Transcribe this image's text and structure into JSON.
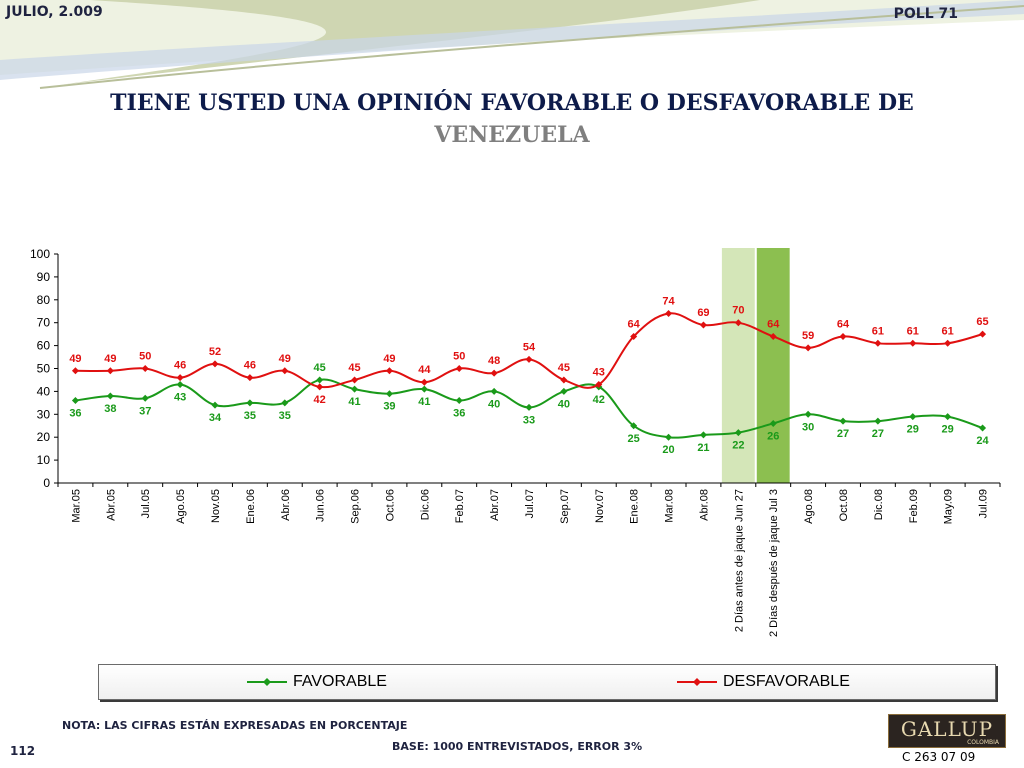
{
  "header": {
    "date": "JULIO, 2.009",
    "poll": "POLL 71"
  },
  "title": {
    "line1": "TIENE USTED UNA OPINIÓN FAVORABLE O DESFAVORABLE DE",
    "line2": "VENEZUELA"
  },
  "colors": {
    "favorable": "#1a9a1a",
    "desfavorable": "#e01010",
    "highlight_light": "#d4e6b8",
    "highlight_dark": "#8cbf50"
  },
  "chart_data": {
    "type": "line",
    "categories": [
      "Mar.05",
      "Abr.05",
      "Jul.05",
      "Ago.05",
      "Nov.05",
      "Ene.06",
      "Abr.06",
      "Jun.06",
      "Sep.06",
      "Oct.06",
      "Dic.06",
      "Feb.07",
      "Abr.07",
      "Jul.07",
      "Sep.07",
      "Nov.07",
      "Ene.08",
      "Mar.08",
      "Abr.08",
      "2 Días antes de jaque Jun 27",
      "2 Días después de jaque Jul 3",
      "Ago.08",
      "Oct.08",
      "Dic.08",
      "Feb.09",
      "May.09",
      "Jul.09"
    ],
    "series": [
      {
        "name": "FAVORABLE",
        "values": [
          36,
          38,
          37,
          43,
          34,
          35,
          35,
          45,
          41,
          39,
          41,
          36,
          40,
          33,
          40,
          42,
          25,
          20,
          21,
          22,
          26,
          30,
          27,
          27,
          29,
          29,
          24
        ]
      },
      {
        "name": "DESFAVORABLE",
        "values": [
          49,
          49,
          50,
          46,
          52,
          46,
          49,
          42,
          45,
          49,
          44,
          50,
          48,
          54,
          45,
          43,
          64,
          74,
          69,
          70,
          64,
          59,
          64,
          61,
          61,
          61,
          65
        ]
      }
    ],
    "yticks": [
      0,
      10,
      20,
      30,
      40,
      50,
      60,
      70,
      80,
      90,
      100
    ],
    "ylim": [
      0,
      100
    ],
    "highlighted_categories": [
      "2 Días antes de jaque Jun 27",
      "2 Días después de jaque Jul 3"
    ],
    "legend": "bottom",
    "grid": false
  },
  "footer": {
    "note": "NOTA: LAS CIFRAS ESTÁN EXPRESADAS EN PORCENTAJE",
    "base": "BASE: 1000 ENTREVISTADOS, ERROR 3%",
    "page": "112",
    "code": "C 263 07 09",
    "logo_text": "GALLUP",
    "logo_sub": "COLOMBIA"
  }
}
